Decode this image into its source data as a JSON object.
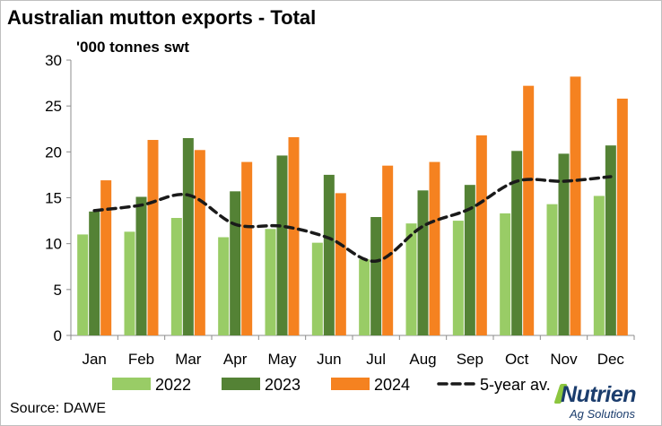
{
  "title": "Australian mutton exports - Total",
  "source": "Source: DAWE",
  "logo": {
    "name": "Nutrien",
    "tagline": "Ag Solutions"
  },
  "chart_data": {
    "type": "bar",
    "title": "Australian mutton exports - Total",
    "ylabel": "'000 tonnes swt",
    "xlabel": "",
    "ylim": [
      0,
      30
    ],
    "yticks": [
      0,
      5,
      10,
      15,
      20,
      25,
      30
    ],
    "grid": false,
    "legend": "bottom",
    "categories": [
      "Jan",
      "Feb",
      "Mar",
      "Apr",
      "May",
      "Jun",
      "Jul",
      "Aug",
      "Sep",
      "Oct",
      "Nov",
      "Dec"
    ],
    "series": [
      {
        "name": "2022",
        "kind": "bar",
        "color": "#99cc66",
        "values": [
          11.0,
          11.3,
          12.8,
          10.7,
          11.6,
          10.1,
          8.3,
          12.2,
          12.5,
          13.3,
          14.3,
          15.2
        ]
      },
      {
        "name": "2023",
        "kind": "bar",
        "color": "#548235",
        "values": [
          13.5,
          15.1,
          21.5,
          15.7,
          19.6,
          17.5,
          12.9,
          15.8,
          16.4,
          20.1,
          19.8,
          20.7
        ]
      },
      {
        "name": "2024",
        "kind": "bar",
        "color": "#f58220",
        "values": [
          16.9,
          21.3,
          20.2,
          18.9,
          21.6,
          15.5,
          18.5,
          18.9,
          21.8,
          27.2,
          28.2,
          25.8
        ]
      },
      {
        "name": "5-year av.",
        "kind": "line",
        "style": "dashed",
        "color": "#1a1a1a",
        "values": [
          13.6,
          14.2,
          15.3,
          12.1,
          11.9,
          10.6,
          8.1,
          11.9,
          13.8,
          16.8,
          16.8,
          17.3
        ]
      }
    ]
  }
}
